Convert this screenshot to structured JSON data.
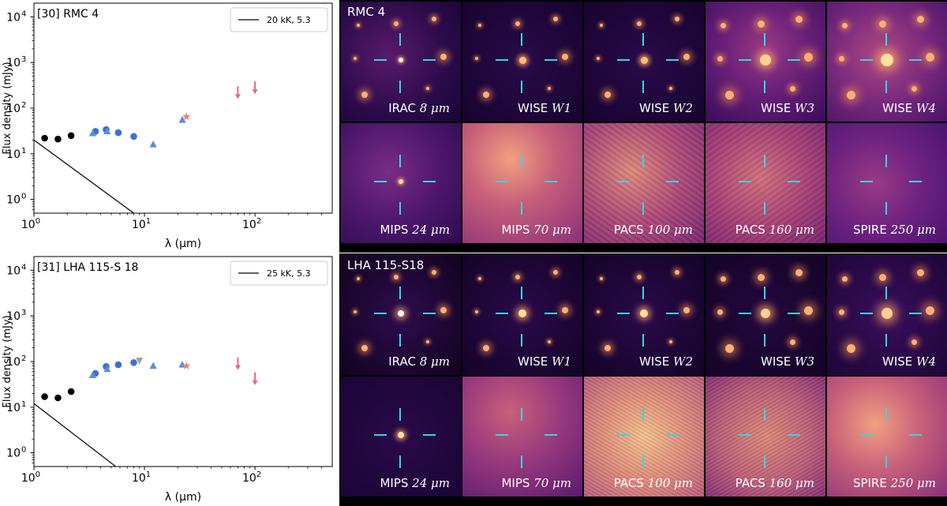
{
  "chart_data": [
    {
      "type": "scatter",
      "title": "[30] RMC 4",
      "xlabel": "λ (μm)",
      "ylabel": "Flux density (mJy)",
      "xscale": "log",
      "yscale": "log",
      "xlim": [
        1,
        500
      ],
      "ylim": [
        0.5,
        20000
      ],
      "x_ticks": [
        {
          "value": 1,
          "base": "10",
          "exp": "0"
        },
        {
          "value": 10,
          "base": "10",
          "exp": "1"
        },
        {
          "value": 100,
          "base": "10",
          "exp": "2"
        }
      ],
      "y_ticks": [
        {
          "value": 1,
          "base": "10",
          "exp": "0"
        },
        {
          "value": 10,
          "base": "10",
          "exp": "1"
        },
        {
          "value": 100,
          "base": "10",
          "exp": "2"
        },
        {
          "value": 1000,
          "base": "10",
          "exp": "3"
        },
        {
          "value": 10000,
          "base": "10",
          "exp": "4"
        }
      ],
      "legend": {
        "position": "top-right",
        "entries": [
          "20 kK, 5.3"
        ]
      },
      "model_line": [
        [
          1,
          20
        ],
        [
          8,
          0.5
        ]
      ],
      "series": [
        {
          "name": "black circles",
          "marker": "circle",
          "color": "#000000",
          "points": [
            [
              1.25,
              22
            ],
            [
              1.65,
              21
            ],
            [
              2.17,
              25
            ]
          ]
        },
        {
          "name": "blue circles",
          "marker": "circle",
          "color": "#3d6fd8",
          "points": [
            [
              3.6,
              31
            ],
            [
              4.5,
              34
            ],
            [
              5.8,
              29
            ],
            [
              8.0,
              24
            ]
          ]
        },
        {
          "name": "light blue triangles",
          "marker": "triangle",
          "color": "#5b8ce0",
          "points": [
            [
              3.4,
              28
            ],
            [
              4.6,
              31
            ],
            [
              12.0,
              16
            ],
            [
              22.0,
              55
            ]
          ]
        },
        {
          "name": "red stars",
          "marker": "star",
          "color": "#f08080",
          "points": [
            [
              24.0,
              65
            ]
          ]
        },
        {
          "name": "upper limits",
          "marker": "arrow",
          "color": "#e06b80",
          "points": [
            [
              70.0,
              220
            ],
            [
              100.0,
              280
            ]
          ]
        }
      ]
    },
    {
      "type": "scatter",
      "title": "[31] LHA 115-S 18",
      "xlabel": "λ (μm)",
      "ylabel": "Flux density (mJy)",
      "xscale": "log",
      "yscale": "log",
      "xlim": [
        1,
        500
      ],
      "ylim": [
        0.5,
        20000
      ],
      "x_ticks": [
        {
          "value": 1,
          "base": "10",
          "exp": "0"
        },
        {
          "value": 10,
          "base": "10",
          "exp": "1"
        },
        {
          "value": 100,
          "base": "10",
          "exp": "2"
        }
      ],
      "y_ticks": [
        {
          "value": 1,
          "base": "10",
          "exp": "0"
        },
        {
          "value": 10,
          "base": "10",
          "exp": "1"
        },
        {
          "value": 100,
          "base": "10",
          "exp": "2"
        },
        {
          "value": 1000,
          "base": "10",
          "exp": "3"
        },
        {
          "value": 10000,
          "base": "10",
          "exp": "4"
        }
      ],
      "legend": {
        "position": "top-right",
        "entries": [
          "25 kK, 5.3"
        ]
      },
      "model_line": [
        [
          1,
          12
        ],
        [
          5.5,
          0.5
        ]
      ],
      "series": [
        {
          "name": "black circles",
          "marker": "circle",
          "color": "#000000",
          "points": [
            [
              1.25,
              17
            ],
            [
              1.65,
              16
            ],
            [
              2.17,
              22
            ]
          ]
        },
        {
          "name": "blue circles",
          "marker": "circle",
          "color": "#3d6fd8",
          "points": [
            [
              3.6,
              55
            ],
            [
              4.5,
              78
            ],
            [
              5.8,
              85
            ],
            [
              8.0,
              95
            ]
          ]
        },
        {
          "name": "light blue triangles",
          "marker": "triangle",
          "color": "#5b8ce0",
          "points": [
            [
              3.4,
              50
            ],
            [
              4.6,
              68
            ],
            [
              12.0,
              80
            ],
            [
              22.0,
              85
            ]
          ]
        },
        {
          "name": "grey triangle",
          "marker": "triangle-down",
          "color": "#a0a0a0",
          "points": [
            [
              9.0,
              105
            ]
          ]
        },
        {
          "name": "red stars",
          "marker": "star",
          "color": "#f08080",
          "points": [
            [
              24.0,
              80
            ]
          ]
        },
        {
          "name": "upper limits",
          "marker": "arrow",
          "color": "#e06b80",
          "points": [
            [
              70.0,
              90
            ],
            [
              100.0,
              42
            ]
          ]
        }
      ]
    }
  ],
  "mosaics": [
    {
      "star_label": "RMC 4",
      "bands": [
        {
          "instrument": "IRAC",
          "value": "8",
          "unit": "μm"
        },
        {
          "instrument": "WISE",
          "value": "W1",
          "unit": ""
        },
        {
          "instrument": "WISE",
          "value": "W2",
          "unit": ""
        },
        {
          "instrument": "WISE",
          "value": "W3",
          "unit": ""
        },
        {
          "instrument": "WISE",
          "value": "W4",
          "unit": ""
        },
        {
          "instrument": "MIPS",
          "value": "24",
          "unit": "μm"
        },
        {
          "instrument": "MIPS",
          "value": "70",
          "unit": "μm"
        },
        {
          "instrument": "PACS",
          "value": "100",
          "unit": "μm"
        },
        {
          "instrument": "PACS",
          "value": "160",
          "unit": "μm"
        },
        {
          "instrument": "SPIRE",
          "value": "250",
          "unit": "μm"
        }
      ]
    },
    {
      "star_label": "LHA 115-S18",
      "bands": [
        {
          "instrument": "IRAC",
          "value": "8",
          "unit": "μm"
        },
        {
          "instrument": "WISE",
          "value": "W1",
          "unit": ""
        },
        {
          "instrument": "WISE",
          "value": "W2",
          "unit": ""
        },
        {
          "instrument": "WISE",
          "value": "W3",
          "unit": ""
        },
        {
          "instrument": "WISE",
          "value": "W4",
          "unit": ""
        },
        {
          "instrument": "MIPS",
          "value": "24",
          "unit": "μm"
        },
        {
          "instrument": "MIPS",
          "value": "70",
          "unit": "μm"
        },
        {
          "instrument": "PACS",
          "value": "100",
          "unit": "μm"
        },
        {
          "instrument": "PACS",
          "value": "160",
          "unit": "μm"
        },
        {
          "instrument": "SPIRE",
          "value": "250",
          "unit": "μm"
        }
      ]
    }
  ],
  "colors": {
    "crosshair": "#33d6e6",
    "label": "#ffffff",
    "axis": "#000000"
  }
}
